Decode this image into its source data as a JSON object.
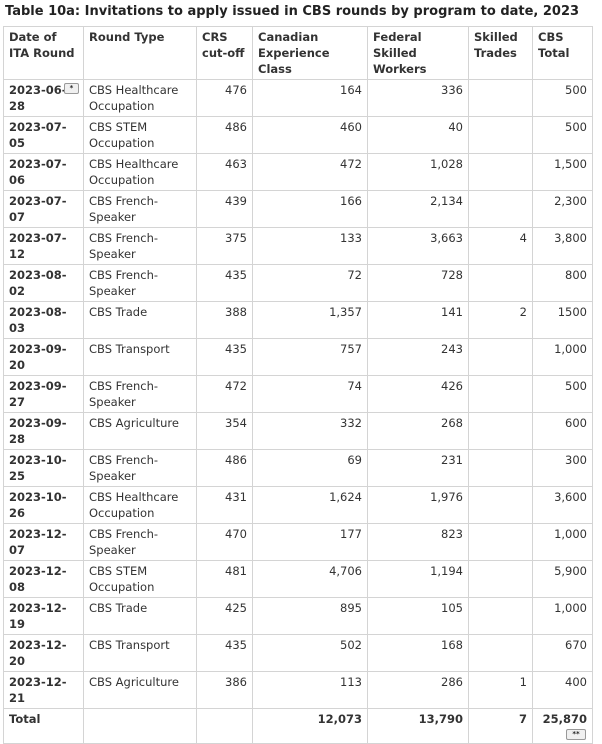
{
  "caption": "Table 10a: Invitations to apply issued in CBS rounds by program to date, 2023",
  "headers": [
    "Date of ITA Round",
    "Round Type",
    "CRS cut-off",
    "Canadian Experience Class",
    "Federal Skilled Workers",
    "Skilled Trades",
    "CBS Total"
  ],
  "rows": [
    [
      "2023-06-28",
      "CBS Healthcare Occupation",
      "476",
      "164",
      "336",
      "",
      "500"
    ],
    [
      "2023-07-05",
      "CBS STEM Occupation",
      "486",
      "460",
      "40",
      "",
      "500"
    ],
    [
      "2023-07-06",
      "CBS Healthcare Occupation",
      "463",
      "472",
      "1,028",
      "",
      "1,500"
    ],
    [
      "2023-07-07",
      "CBS French-Speaker",
      "439",
      "166",
      "2,134",
      "",
      "2,300"
    ],
    [
      "2023-07-12",
      "CBS French-Speaker",
      "375",
      "133",
      "3,663",
      "4",
      "3,800"
    ],
    [
      "2023-08-02",
      "CBS French-Speaker",
      "435",
      "72",
      "728",
      "",
      "800"
    ],
    [
      "2023-08-03",
      "CBS Trade",
      "388",
      "1,357",
      "141",
      "2",
      "1500"
    ],
    [
      "2023-09-20",
      "CBS Transport",
      "435",
      "757",
      "243",
      "",
      "1,000"
    ],
    [
      "2023-09-27",
      "CBS French-Speaker",
      "472",
      "74",
      "426",
      "",
      "500"
    ],
    [
      "2023-09-28",
      "CBS Agriculture",
      "354",
      "332",
      "268",
      "",
      "600"
    ],
    [
      "2023-10-25",
      "CBS French-Speaker",
      "486",
      "69",
      "231",
      "",
      "300"
    ],
    [
      "2023-10-26",
      "CBS Healthcare Occupation",
      "431",
      "1,624",
      "1,976",
      "",
      "3,600"
    ],
    [
      "2023-12-07",
      "CBS French-Speaker",
      "470",
      "177",
      "823",
      "",
      "1,000"
    ],
    [
      "2023-12-08",
      "CBS STEM Occupation",
      "481",
      "4,706",
      "1,194",
      "",
      "5,900"
    ],
    [
      "2023-12-19",
      "CBS Trade",
      "425",
      "895",
      "105",
      "",
      "1,000"
    ],
    [
      "2023-12-20",
      "CBS Transport",
      "435",
      "502",
      "168",
      "",
      "670"
    ],
    [
      "2023-12-21",
      "CBS Agriculture",
      "386",
      "113",
      "286",
      "1",
      "400"
    ]
  ],
  "total": [
    "Total",
    "",
    "",
    "12,073",
    "13,790",
    "7",
    "25,870"
  ],
  "sort_button_glyph": "*",
  "corner_button_glyph": "**"
}
